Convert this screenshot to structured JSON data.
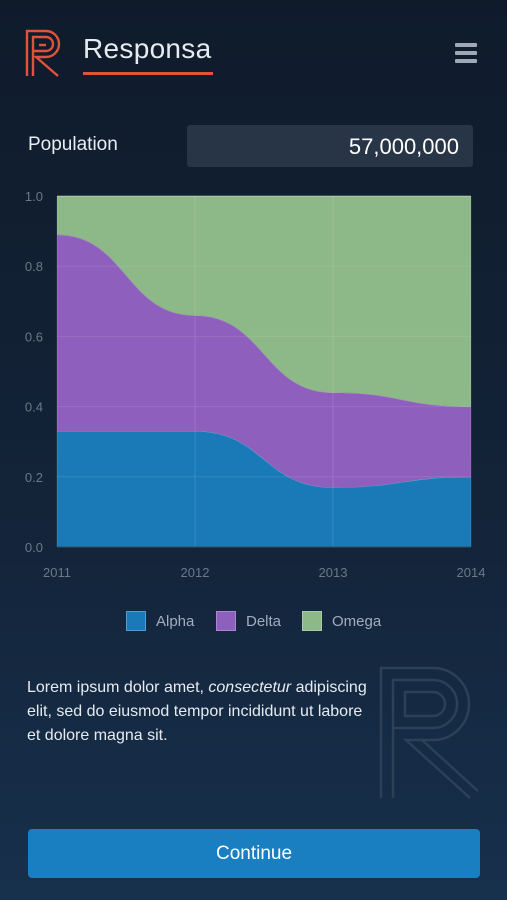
{
  "header": {
    "app_title": "Responsa",
    "logo_icon": "responsa-r-logo-icon",
    "menu_icon": "hamburger-menu-icon"
  },
  "population": {
    "label": "Population",
    "value": "57,000,000"
  },
  "chart_data": {
    "type": "area",
    "stacked": true,
    "x": [
      "2011",
      "2012",
      "2013",
      "2014"
    ],
    "ylim": [
      0,
      1.0
    ],
    "yticks": [
      "0.0",
      "0.2",
      "0.4",
      "0.6",
      "0.8",
      "1.0"
    ],
    "grid": true,
    "legend_position": "bottom",
    "series": [
      {
        "name": "Alpha",
        "values": [
          0.33,
          0.33,
          0.17,
          0.2
        ],
        "color": "#1a7ab8"
      },
      {
        "name": "Delta",
        "values": [
          0.56,
          0.33,
          0.27,
          0.2
        ],
        "color": "#8f5fbd"
      },
      {
        "name": "Omega",
        "values": [
          0.11,
          0.34,
          0.56,
          0.6
        ],
        "color": "#8cb987"
      }
    ]
  },
  "body": {
    "text_before": "Lorem ipsum dolor amet, ",
    "text_emphasis": "consectetur",
    "text_after": " adipiscing elit, sed do eiusmod tempor incididunt ut labore et dolore magna sit."
  },
  "watermark_icon": "responsa-r-watermark-icon",
  "continue_label": "Continue"
}
